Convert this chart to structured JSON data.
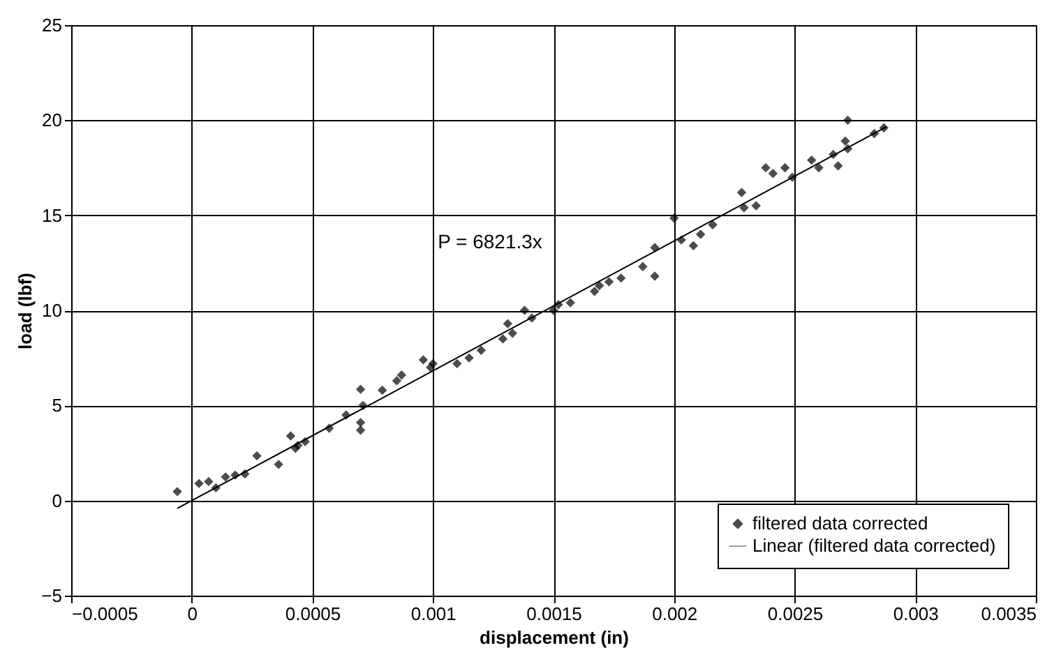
{
  "chart_data": {
    "type": "scatter",
    "xlabel": "displacement (in)",
    "ylabel": "load (lbf)",
    "xlim": [
      -0.0005,
      0.0035
    ],
    "xticks": [
      -0.0005,
      0,
      0.0005,
      0.001,
      0.0015,
      0.002,
      0.0025,
      0.003,
      0.0035
    ],
    "ylim": [
      -5,
      25
    ],
    "yticks": [
      -5,
      0,
      5,
      10,
      15,
      20,
      25
    ],
    "grid": true,
    "legend": "bottom right",
    "annotations": [
      "P = 6821.3x"
    ],
    "series": [
      {
        "name": "filtered data corrected",
        "marker": "diamond",
        "color": "#000000",
        "x": [
          -6e-05,
          3e-05,
          7e-05,
          0.0001,
          0.00014,
          0.00018,
          0.00022,
          0.00027,
          0.00036,
          0.00041,
          0.00043,
          0.00044,
          0.00047,
          0.00057,
          0.00064,
          0.0007,
          0.0007,
          0.0007,
          0.00071,
          0.00079,
          0.00085,
          0.00087,
          0.00096,
          0.00099,
          0.001,
          0.0011,
          0.00115,
          0.0012,
          0.00129,
          0.00131,
          0.00133,
          0.00138,
          0.00141,
          0.0015,
          0.00152,
          0.00157,
          0.00167,
          0.00169,
          0.00173,
          0.00178,
          0.00187,
          0.00192,
          0.00192,
          0.002,
          0.00203,
          0.00208,
          0.00211,
          0.00216,
          0.00228,
          0.00229,
          0.00234,
          0.00238,
          0.00241,
          0.00246,
          0.00249,
          0.00257,
          0.0026,
          0.00266,
          0.00268,
          0.00271,
          0.00272,
          0.00272,
          0.00283,
          0.00287
        ],
        "values": [
          0.47,
          0.9,
          1.0,
          0.67,
          1.24,
          1.34,
          1.4,
          2.35,
          1.9,
          3.4,
          2.75,
          2.9,
          3.1,
          3.8,
          4.5,
          5.85,
          4.1,
          3.7,
          5.0,
          5.8,
          6.3,
          6.6,
          7.4,
          7.0,
          7.2,
          7.2,
          7.5,
          7.9,
          8.5,
          9.3,
          8.8,
          10.0,
          9.6,
          10.0,
          10.3,
          10.4,
          11.0,
          11.3,
          11.5,
          11.7,
          12.3,
          11.8,
          13.3,
          14.85,
          13.7,
          13.4,
          14.0,
          14.5,
          16.2,
          15.4,
          15.5,
          17.5,
          17.2,
          17.5,
          17.0,
          17.9,
          17.5,
          18.2,
          17.6,
          18.9,
          20.0,
          18.5,
          19.3,
          19.6
        ]
      },
      {
        "name": "Linear (filtered data corrected)",
        "type": "line",
        "line_style": "solid",
        "color": "#000000",
        "x": [
          -6e-05,
          0.00288
        ],
        "values": [
          -0.41,
          19.65
        ]
      }
    ]
  }
}
